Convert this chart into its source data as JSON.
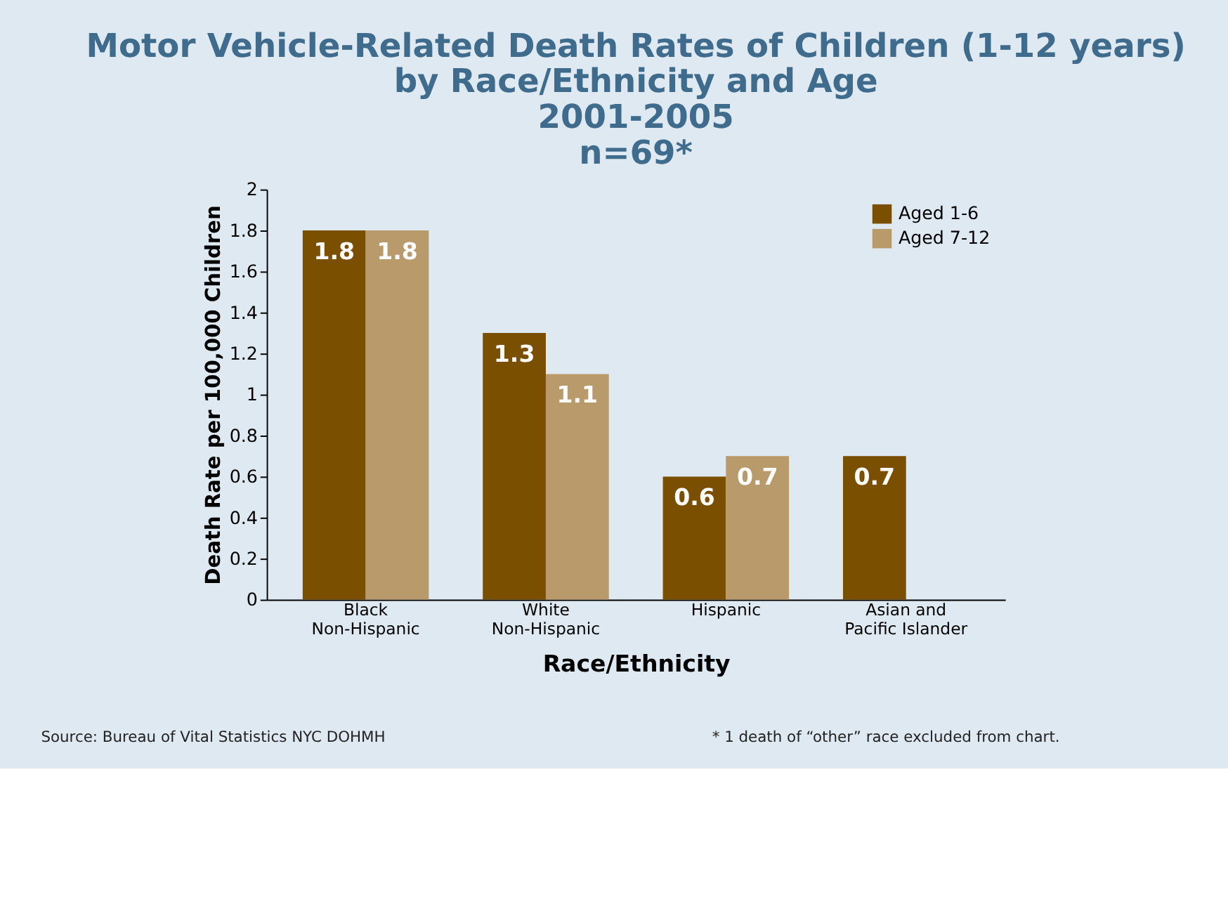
{
  "chart_data": {
    "type": "bar",
    "title": "Motor Vehicle-Related Death Rates of Children (1-12 years)\nby Race/Ethnicity and Age\n2001-2005\nn=69*",
    "xlabel": "Race/Ethnicity",
    "ylabel": "Death Rate per 100,000 Children",
    "categories": [
      "Black\nNon-Hispanic",
      "White\nNon-Hispanic",
      "Hispanic",
      "Asian and\nPacific Islander"
    ],
    "series": [
      {
        "name": "Aged 1-6",
        "color": "#7a4f00",
        "values": [
          1.8,
          1.3,
          0.6,
          0.7
        ]
      },
      {
        "name": "Aged 7-12",
        "color": "#b99a6b",
        "values": [
          1.8,
          1.1,
          0.7,
          null
        ]
      }
    ],
    "ylim": [
      0,
      2
    ],
    "yticks": [
      0,
      0.2,
      0.4,
      0.6,
      0.8,
      1,
      1.2,
      1.4,
      1.6,
      1.8,
      2
    ],
    "data_labels": true,
    "legend": "top right",
    "grid": false,
    "annotations": [
      "Source: Bureau of Vital Statistics NYC DOHMH",
      "* 1 death of “other” race excluded from chart."
    ]
  }
}
